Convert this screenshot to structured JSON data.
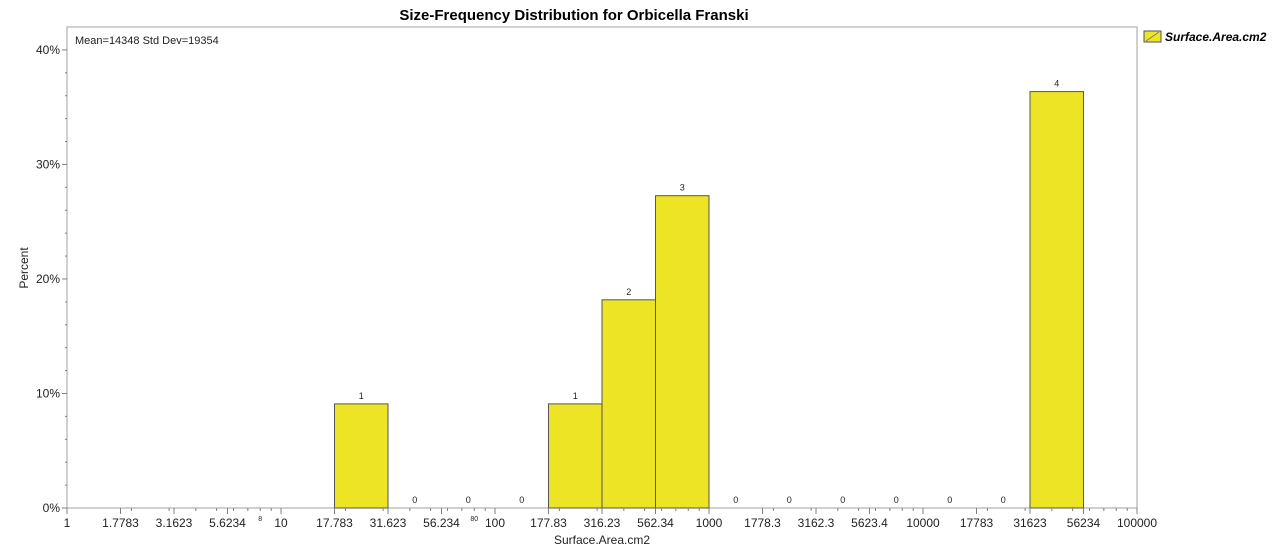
{
  "chart_data": {
    "type": "bar",
    "title": "Size-Frequency Distribution for Orbicella Franski",
    "xlabel": "Surface.Area.cm2",
    "ylabel": "Percent",
    "x_scale": "log10",
    "xlim": [
      1,
      100000
    ],
    "ylim": [
      0,
      42
    ],
    "y_ticks": [
      0,
      10,
      20,
      30,
      40
    ],
    "y_tick_labels": [
      "0%",
      "10%",
      "20%",
      "30%",
      "40%"
    ],
    "x_ticks": [
      1,
      1.7783,
      3.1623,
      5.6234,
      10,
      17.783,
      31.623,
      56.234,
      100,
      177.83,
      316.23,
      562.34,
      1000,
      1778.3,
      3162.3,
      5623.4,
      10000,
      17783,
      31623,
      56234,
      100000
    ],
    "x_tick_labels": [
      "1",
      "1.7783",
      "3.1623",
      "5.6234",
      "10",
      "17.783",
      "31.623",
      "56.234",
      "100",
      "177.83",
      "316.23",
      "562.34",
      "1000",
      "1778.3",
      "3162.3",
      "5623.4",
      "10000",
      "17783",
      "31623",
      "56234",
      "100000"
    ],
    "minor_x_labels": [
      {
        "text": "8",
        "value": 8
      },
      {
        "text": "80",
        "value": 80
      }
    ],
    "stats_text": "Mean=14348  Std Dev=19354",
    "bars": [
      {
        "x0": 17.783,
        "x1": 31.623,
        "value": 9.09,
        "count_label": "1"
      },
      {
        "x0": 31.623,
        "x1": 56.234,
        "value": 0,
        "count_label": "0"
      },
      {
        "x0": 56.234,
        "x1": 100,
        "value": 0,
        "count_label": "0"
      },
      {
        "x0": 100,
        "x1": 177.83,
        "value": 0,
        "count_label": "0"
      },
      {
        "x0": 177.83,
        "x1": 316.23,
        "value": 9.09,
        "count_label": "1"
      },
      {
        "x0": 316.23,
        "x1": 562.34,
        "value": 18.18,
        "count_label": "2"
      },
      {
        "x0": 562.34,
        "x1": 1000,
        "value": 27.27,
        "count_label": "3"
      },
      {
        "x0": 1000,
        "x1": 1778.3,
        "value": 0,
        "count_label": "0"
      },
      {
        "x0": 1778.3,
        "x1": 3162.3,
        "value": 0,
        "count_label": "0"
      },
      {
        "x0": 3162.3,
        "x1": 5623.4,
        "value": 0,
        "count_label": "0"
      },
      {
        "x0": 5623.4,
        "x1": 10000,
        "value": 0,
        "count_label": "0"
      },
      {
        "x0": 10000,
        "x1": 17783,
        "value": 0,
        "count_label": "0"
      },
      {
        "x0": 17783,
        "x1": 31623,
        "value": 0,
        "count_label": "0"
      },
      {
        "x0": 31623,
        "x1": 56234,
        "value": 36.36,
        "count_label": "4"
      }
    ],
    "series": [
      {
        "name": "Surface.Area.cm2",
        "color": "#ece424"
      }
    ],
    "legend": {
      "label": "Surface.Area.cm2",
      "position": "top-right"
    }
  },
  "colors": {
    "bar_fill": "#ece424",
    "bar_stroke": "#555555",
    "frame": "#a0a0a0",
    "tick": "#808080"
  }
}
